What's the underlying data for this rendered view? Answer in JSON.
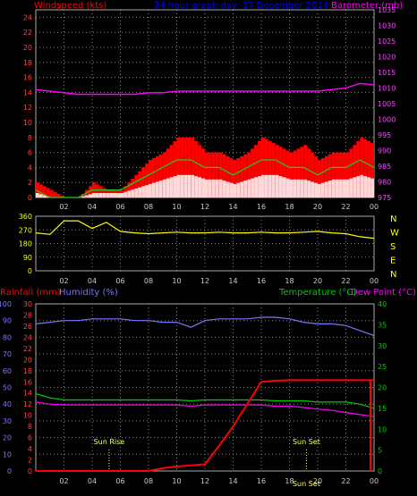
{
  "header": {
    "left_title": "Windspeed (kts)",
    "center_title": "24 hour graph day: 17 December 2014",
    "right_title": "Barometer (mb)"
  },
  "x_ticks": [
    "02",
    "04",
    "06",
    "08",
    "10",
    "12",
    "14",
    "16",
    "18",
    "20",
    "22",
    "00"
  ],
  "colors": {
    "wind_speed": "#ff0000",
    "wind_avg": "#22cc22",
    "wind_gust_white": "#ffffff",
    "barometer": "#ff00ff",
    "direction": "#ffff00",
    "rain": "#ff0000",
    "humidity": "#7777ff",
    "temperature": "#00cc00",
    "dewpoint": "#ff00ff"
  },
  "chart_data": [
    {
      "type": "line",
      "title": "Windspeed (kts) / Barometer (mb)",
      "ylabel": "Windspeed (kts)",
      "y2label": "Barometer (mb)",
      "ylim": [
        0,
        25
      ],
      "y2lim": [
        975,
        1035
      ],
      "y_ticks": [
        0,
        2,
        4,
        6,
        8,
        10,
        12,
        14,
        16,
        18,
        20,
        22,
        24
      ],
      "y2_ticks": [
        975,
        980,
        985,
        990,
        995,
        1000,
        1005,
        1010,
        1015,
        1020,
        1025,
        1030,
        1035
      ],
      "x_hours": [
        0,
        1,
        2,
        3,
        4,
        5,
        6,
        7,
        8,
        9,
        10,
        11,
        12,
        13,
        14,
        15,
        16,
        17,
        18,
        19,
        20,
        21,
        22,
        23,
        24
      ],
      "series": [
        {
          "name": "Windspeed",
          "values": [
            2,
            1,
            0,
            0,
            2,
            1,
            1,
            3,
            5,
            6,
            8,
            8,
            6,
            6,
            5,
            6,
            8,
            7,
            6,
            7,
            5,
            6,
            6,
            8,
            7
          ]
        },
        {
          "name": "Wind average",
          "values": [
            1,
            0,
            0,
            0,
            1,
            1,
            1,
            2,
            3,
            4,
            5,
            5,
            4,
            4,
            3,
            4,
            5,
            5,
            4,
            4,
            3,
            4,
            4,
            5,
            4
          ]
        },
        {
          "name": "Barometer",
          "values": [
            1009.5,
            1009,
            1008.5,
            1008,
            1008,
            1008,
            1008,
            1008,
            1008.5,
            1008.5,
            1009,
            1009,
            1009,
            1009,
            1009,
            1009,
            1009,
            1009,
            1009,
            1009,
            1009,
            1009.5,
            1010,
            1011.5,
            1011
          ]
        }
      ]
    },
    {
      "type": "line",
      "title": "Wind direction",
      "y_ticks": [
        0,
        90,
        180,
        270,
        360
      ],
      "ylim": [
        0,
        360
      ],
      "compass_labels": [
        "N",
        "W",
        "S",
        "E",
        "N"
      ],
      "x_hours": [
        0,
        1,
        2,
        3,
        4,
        5,
        6,
        7,
        8,
        9,
        10,
        11,
        12,
        13,
        14,
        15,
        16,
        17,
        18,
        19,
        20,
        21,
        22,
        23,
        24
      ],
      "series": [
        {
          "name": "Direction",
          "values": [
            250,
            240,
            330,
            330,
            280,
            320,
            260,
            250,
            245,
            250,
            255,
            250,
            250,
            255,
            250,
            250,
            255,
            250,
            250,
            255,
            260,
            250,
            245,
            225,
            215
          ]
        }
      ]
    },
    {
      "type": "line",
      "title": "Rainfall / Humidity / Temperature / Dew Point",
      "labels": {
        "rain": "Rainfall (mm)",
        "humidity": "Humidity (%)",
        "temperature": "Temperature (°C)",
        "dewpoint": "Dew Point (°C)"
      },
      "humidity_ticks": [
        0,
        10,
        20,
        30,
        40,
        50,
        60,
        70,
        80,
        90,
        100
      ],
      "rain_ticks": [
        0,
        2,
        4,
        6,
        8,
        10,
        12,
        14,
        16,
        18,
        20,
        22,
        24,
        26,
        28,
        30
      ],
      "temp_ticks": [
        0,
        5,
        10,
        15,
        20,
        25,
        30,
        35,
        40
      ],
      "x_hours": [
        0,
        1,
        2,
        3,
        4,
        5,
        6,
        7,
        8,
        9,
        10,
        11,
        12,
        13,
        14,
        15,
        16,
        17,
        18,
        19,
        20,
        21,
        22,
        23,
        24
      ],
      "series": [
        {
          "name": "Humidity",
          "values": [
            88,
            89,
            90,
            90,
            91,
            91,
            91,
            90,
            90,
            89,
            89,
            86,
            90,
            91,
            91,
            91,
            92,
            92,
            91,
            89,
            88,
            88,
            87,
            84,
            81
          ]
        },
        {
          "name": "Temperature",
          "values": [
            18.5,
            17.5,
            17,
            17,
            17,
            17,
            17,
            17,
            17,
            17,
            17,
            16.8,
            17,
            17,
            17,
            17,
            17,
            16.8,
            16.8,
            16.8,
            16.5,
            16.5,
            16.5,
            16,
            15
          ]
        },
        {
          "name": "Dew point",
          "values": [
            16.5,
            16,
            15.8,
            15.8,
            15.8,
            15.8,
            15.8,
            15.8,
            15.8,
            15.8,
            15.8,
            15.5,
            15.8,
            15.8,
            15.8,
            15.8,
            15.8,
            15.5,
            15.5,
            15.2,
            14.8,
            14.5,
            14,
            13.5,
            13
          ]
        },
        {
          "name": "Rainfall",
          "values": [
            0,
            0,
            0,
            0,
            0,
            0,
            0,
            0,
            0,
            0.5,
            0.8,
            1,
            1.2,
            4.5,
            8,
            12,
            16,
            16.2,
            16.3,
            16.3,
            16.3,
            16.3,
            16.3,
            16.3,
            16.3
          ]
        }
      ],
      "annotations": [
        "Sun Rise",
        "Sun Set",
        "Sun Set"
      ]
    }
  ]
}
